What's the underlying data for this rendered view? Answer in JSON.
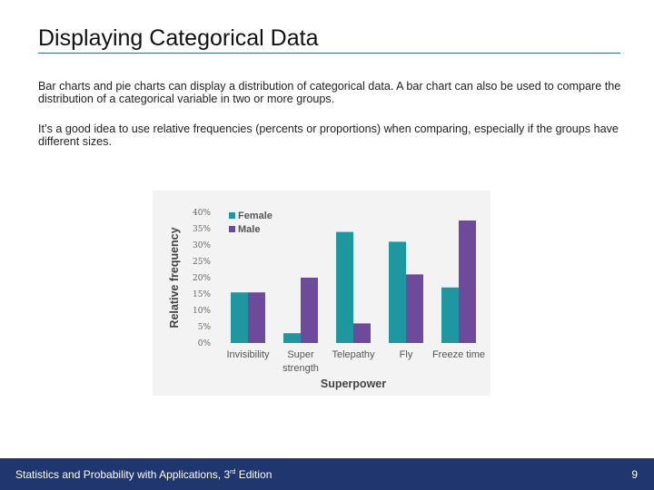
{
  "slide": {
    "title": "Displaying Categorical Data",
    "paragraphs": [
      "Bar charts and pie charts can display a distribution of categorical data. A bar chart can also be used to compare the distribution of a categorical variable in two or more groups.",
      "It’s a good idea to use relative frequencies (percents or proportions) when comparing, especially if the groups have different sizes."
    ]
  },
  "footer": {
    "text_before": "Statistics and Probability with Applications, 3",
    "superscript": "rd",
    "text_after": " Edition",
    "page_number": "9"
  },
  "colors": {
    "female": "#1f97a1",
    "male": "#6e4a9c",
    "footer_bg": "#20366f",
    "title_rule": "#3b5fa7"
  },
  "chart_data": {
    "type": "bar",
    "categories": [
      "Invisibility",
      "Super strength",
      "Telepathy",
      "Fly",
      "Freeze time"
    ],
    "category_lines": [
      [
        "Invisibility"
      ],
      [
        "Super",
        "strength"
      ],
      [
        "Telepathy"
      ],
      [
        "Fly"
      ],
      [
        "Freeze time"
      ]
    ],
    "series": [
      {
        "name": "Female",
        "values": [
          15.5,
          3,
          34,
          31,
          17
        ]
      },
      {
        "name": "Male",
        "values": [
          15.5,
          20,
          6,
          21,
          37.5
        ]
      }
    ],
    "ylim": [
      0,
      40
    ],
    "yticks": [
      0,
      5,
      10,
      15,
      20,
      25,
      30,
      35,
      40
    ],
    "ytick_labels": [
      "0%",
      "5%",
      "10%",
      "15%",
      "20%",
      "25%",
      "30%",
      "35%",
      "40%"
    ],
    "xlabel": "Superpower",
    "ylabel": "Relative frequency",
    "legend": "top-left",
    "grid": false
  }
}
